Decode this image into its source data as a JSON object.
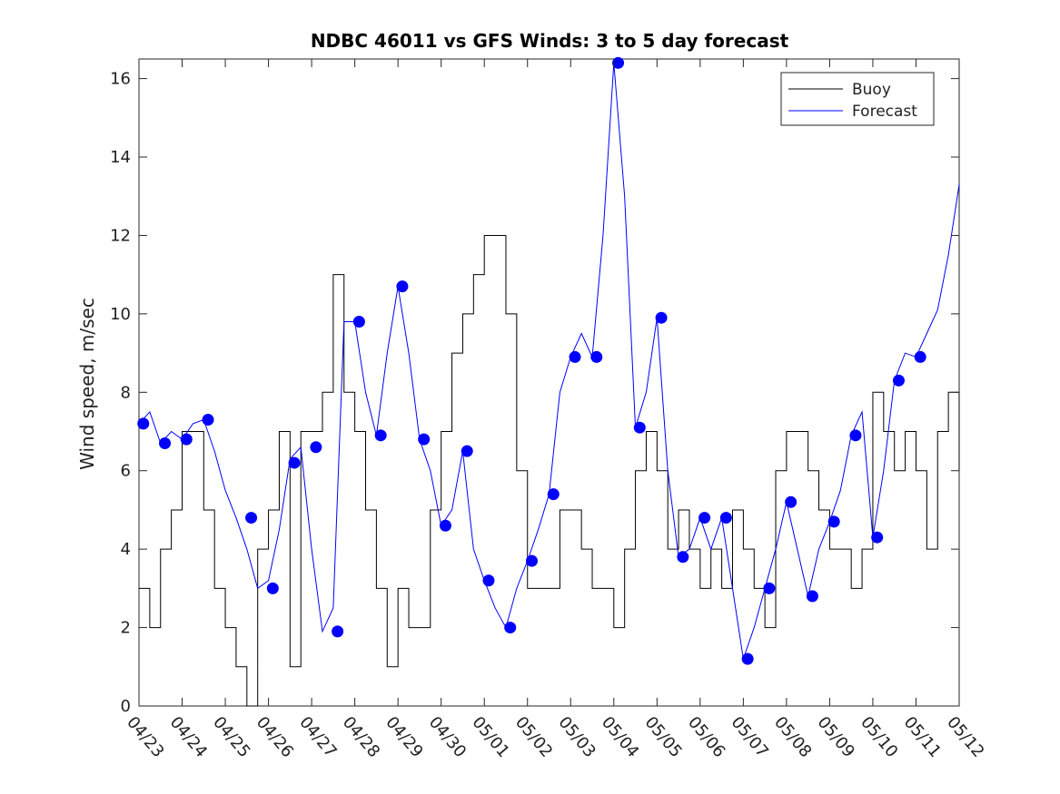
{
  "chart_data": {
    "type": "line",
    "title": "NDBC 46011 vs GFS Winds: 3 to 5 day forecast",
    "xlabel": "",
    "ylabel": "Wind speed, m/sec",
    "x_tick_labels": [
      "04/23",
      "04/24",
      "04/25",
      "04/26",
      "04/27",
      "04/28",
      "04/29",
      "04/30",
      "05/01",
      "05/02",
      "05/03",
      "05/04",
      "05/05",
      "05/06",
      "05/07",
      "05/08",
      "05/09",
      "05/10",
      "05/11",
      "05/12"
    ],
    "xlim": [
      0,
      19
    ],
    "ylim": [
      0,
      16.5
    ],
    "y_ticks": [
      0,
      2,
      4,
      6,
      8,
      10,
      12,
      14,
      16
    ],
    "grid": false,
    "legend_position": "top-right",
    "colors": {
      "buoy": "#000000",
      "forecast": "#0000ff",
      "axes": "#262626"
    },
    "series": [
      {
        "name": "Buoy",
        "x": [
          0.0,
          0.25,
          0.5,
          0.75,
          1.0,
          1.25,
          1.5,
          1.75,
          2.0,
          2.25,
          2.5,
          2.75,
          3.0,
          3.25,
          3.5,
          3.75,
          4.0,
          4.25,
          4.5,
          4.75,
          5.0,
          5.25,
          5.5,
          5.75,
          6.0,
          6.25,
          6.5,
          6.75,
          7.0,
          7.25,
          7.5,
          7.75,
          8.0,
          8.25,
          8.5,
          8.75,
          9.0,
          9.25,
          9.5,
          9.75,
          10.0,
          10.25,
          10.5,
          10.75,
          11.0,
          11.25,
          11.5,
          11.75,
          12.0,
          12.25,
          12.5,
          12.75,
          13.0,
          13.25,
          13.5,
          13.75,
          14.0,
          14.25,
          14.5,
          14.75,
          15.0,
          15.25,
          15.5,
          15.75,
          16.0,
          16.25,
          16.5,
          16.75,
          17.0,
          17.25,
          17.5,
          17.75,
          18.0,
          18.25,
          18.5,
          18.75,
          19.0
        ],
        "values": [
          3,
          2,
          4,
          5,
          7,
          7,
          5,
          3,
          2,
          1,
          0,
          4,
          5,
          7,
          1,
          7,
          7,
          8,
          11,
          8,
          7,
          5,
          3,
          1,
          3,
          2,
          2,
          5,
          7,
          9,
          10,
          11,
          12,
          12,
          10,
          6,
          3,
          3,
          3,
          5,
          5,
          4,
          3,
          3,
          2,
          4,
          6,
          7,
          6,
          4,
          5,
          4,
          3,
          4,
          3,
          5,
          4,
          3,
          2,
          6,
          7,
          7,
          6,
          5,
          4,
          4,
          3,
          4,
          8,
          7,
          6,
          7,
          6,
          4,
          7,
          8,
          6
        ]
      },
      {
        "name": "Forecast",
        "x": [
          0.0,
          0.25,
          0.5,
          0.75,
          1.0,
          1.25,
          1.5,
          1.75,
          2.0,
          2.25,
          2.5,
          2.75,
          3.0,
          3.25,
          3.5,
          3.75,
          4.0,
          4.25,
          4.5,
          4.75,
          5.0,
          5.25,
          5.5,
          5.75,
          6.0,
          6.25,
          6.5,
          6.75,
          7.0,
          7.25,
          7.5,
          7.75,
          8.0,
          8.25,
          8.5,
          8.75,
          9.0,
          9.25,
          9.5,
          9.75,
          10.0,
          10.25,
          10.5,
          10.75,
          11.0,
          11.25,
          11.5,
          11.75,
          12.0,
          12.25,
          12.5,
          12.75,
          13.0,
          13.25,
          13.5,
          13.75,
          14.0,
          14.25,
          14.5,
          14.75,
          15.0,
          15.25,
          15.5,
          15.75,
          16.0,
          16.25,
          16.5,
          16.75,
          17.0,
          17.25,
          17.5,
          17.75,
          18.0,
          18.25,
          18.5,
          18.75,
          19.0
        ],
        "values": [
          7.2,
          7.5,
          6.7,
          7.0,
          6.8,
          7.2,
          7.3,
          6.5,
          5.5,
          4.8,
          4.0,
          3.0,
          3.2,
          4.5,
          6.3,
          6.6,
          4.0,
          1.9,
          2.5,
          9.8,
          9.8,
          8.0,
          6.9,
          9.0,
          10.7,
          9.0,
          6.8,
          6.0,
          4.6,
          5.0,
          6.5,
          4.0,
          3.2,
          2.5,
          2.0,
          3.0,
          3.7,
          4.5,
          5.4,
          8.0,
          8.9,
          9.5,
          8.9,
          12.0,
          16.4,
          13.0,
          7.1,
          8.0,
          9.9,
          6.0,
          3.8,
          4.0,
          4.8,
          4.0,
          4.8,
          3.0,
          1.2,
          2.0,
          3.0,
          4.0,
          5.2,
          4.0,
          2.8,
          4.0,
          4.7,
          5.5,
          6.9,
          7.5,
          4.3,
          6.0,
          8.3,
          9.0,
          8.9,
          9.5,
          10.1,
          11.5,
          13.3
        ]
      }
    ],
    "forecast_markers": {
      "x": [
        0.1,
        0.6,
        1.1,
        1.6,
        2.6,
        3.1,
        3.6,
        4.1,
        4.6,
        5.1,
        5.6,
        6.1,
        6.6,
        7.1,
        7.6,
        8.1,
        8.6,
        9.1,
        9.6,
        10.1,
        10.6,
        11.1,
        11.6,
        12.1,
        12.6,
        13.1,
        13.6,
        14.1,
        14.6,
        15.1,
        15.6,
        16.1,
        16.6,
        17.1,
        17.6,
        18.1
      ],
      "values": [
        7.2,
        6.7,
        6.8,
        7.3,
        4.8,
        3.0,
        6.2,
        6.6,
        1.9,
        9.8,
        6.9,
        10.7,
        6.8,
        4.6,
        6.5,
        3.2,
        2.0,
        3.7,
        5.4,
        8.9,
        8.9,
        16.4,
        7.1,
        9.9,
        3.8,
        4.8,
        4.8,
        1.2,
        3.0,
        5.2,
        2.8,
        4.7,
        6.9,
        4.3,
        8.3,
        8.9
      ]
    }
  },
  "legend": {
    "items": [
      {
        "label": "Buoy",
        "color": "#000000"
      },
      {
        "label": "Forecast",
        "color": "#0000ff"
      }
    ]
  }
}
